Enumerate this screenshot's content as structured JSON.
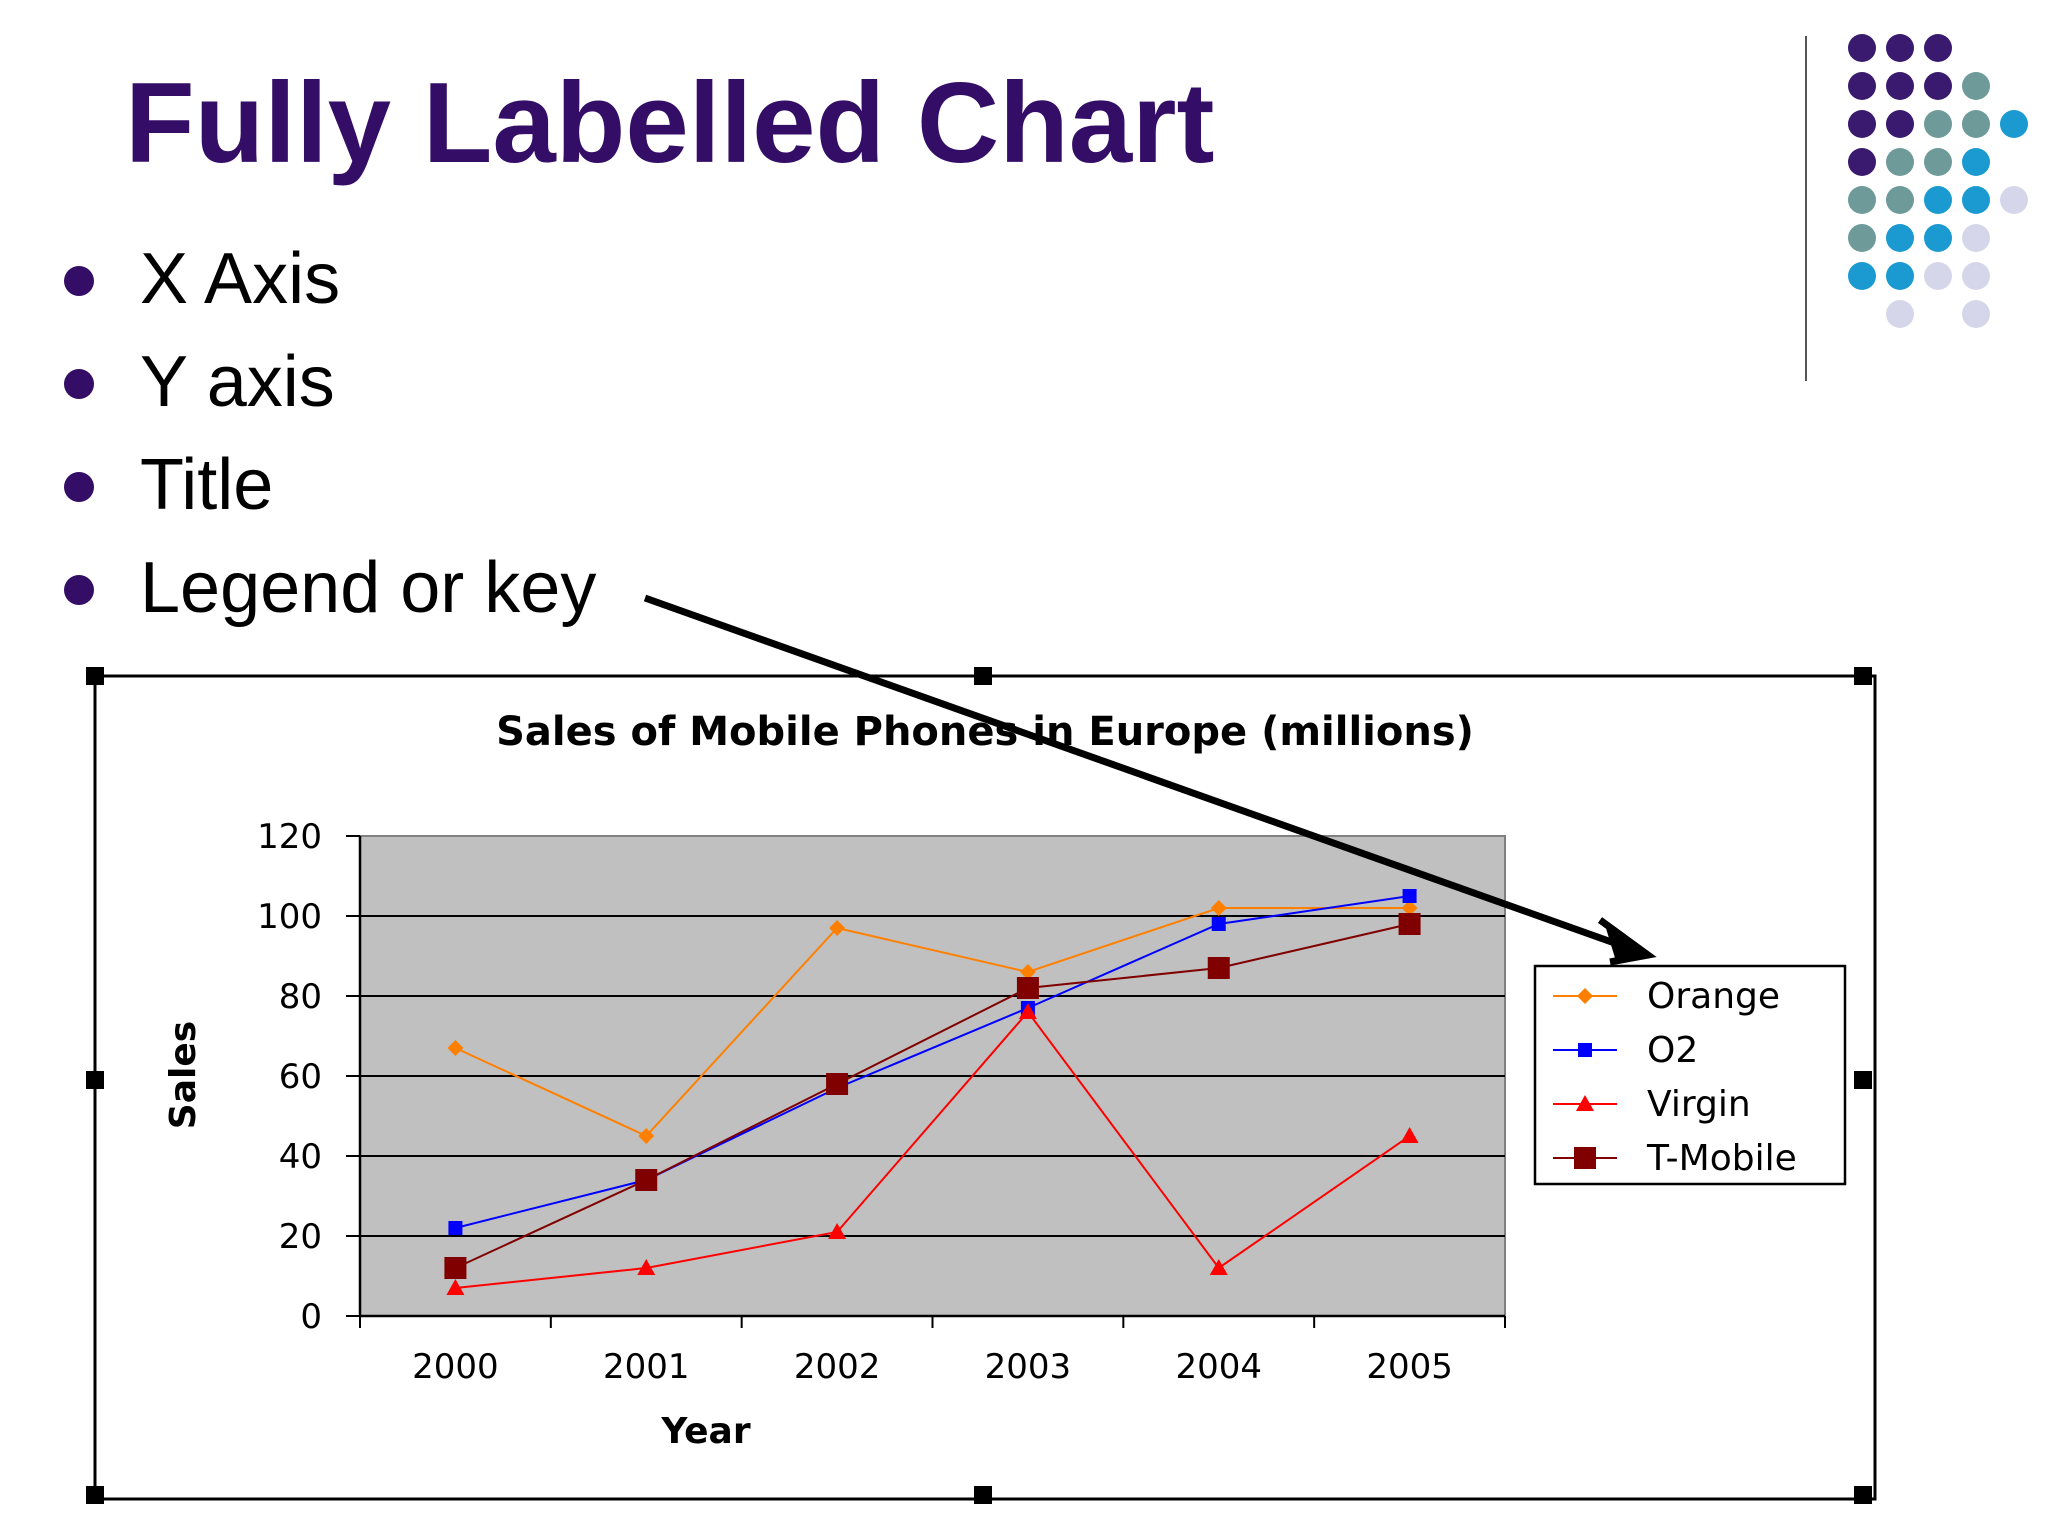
{
  "slide": {
    "title": "Fully Labelled Chart",
    "bullets": [
      "X Axis",
      "Y axis",
      "Title",
      "Legend or key"
    ]
  },
  "colors": {
    "title": "#330d66",
    "bullet": "#330d66",
    "dot_purple": "#3a1a6e",
    "dot_teal": "#6e9a9a",
    "dot_blue": "#1a9ad0",
    "dot_lavender": "#d6d6ea",
    "plot_bg": "#c0c0c0"
  },
  "chart_data": {
    "type": "line",
    "title": "Sales of Mobile Phones in Europe (millions)",
    "xlabel": "Year",
    "ylabel": "Sales",
    "categories": [
      "2000",
      "2001",
      "2002",
      "2003",
      "2004",
      "2005"
    ],
    "ylim": [
      0,
      120
    ],
    "yticks": [
      0,
      20,
      40,
      60,
      80,
      100,
      120
    ],
    "grid": true,
    "legend_position": "right",
    "series": [
      {
        "name": "Orange",
        "color": "#ff8000",
        "marker": "diamond",
        "values": [
          67,
          45,
          97,
          86,
          102,
          102
        ]
      },
      {
        "name": "O2",
        "color": "#0000ff",
        "marker": "square",
        "values": [
          22,
          34,
          57,
          77,
          98,
          105
        ]
      },
      {
        "name": "Virgin",
        "color": "#ff0000",
        "marker": "triangle",
        "values": [
          7,
          12,
          21,
          76,
          12,
          45
        ]
      },
      {
        "name": "T-Mobile",
        "color": "#800000",
        "marker": "bigsquare",
        "values": [
          12,
          34,
          58,
          82,
          87,
          98
        ]
      }
    ]
  }
}
